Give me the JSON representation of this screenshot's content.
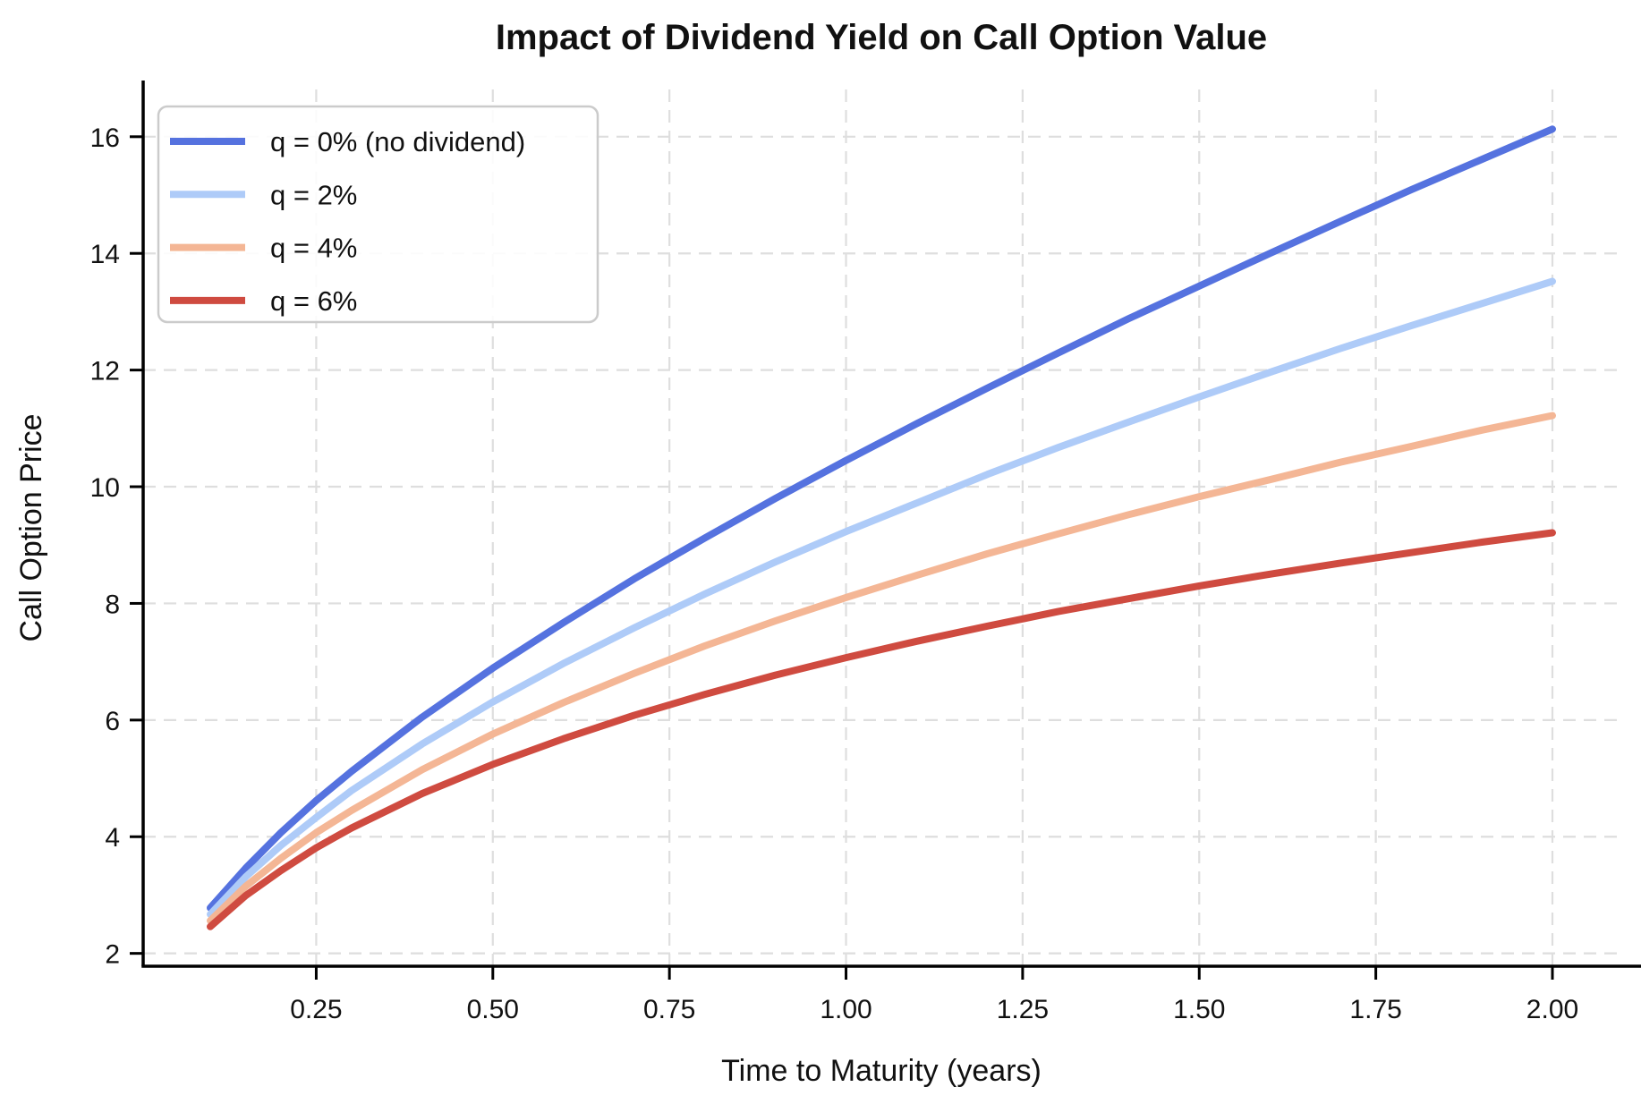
{
  "chart_data": {
    "type": "line",
    "title": "Impact of Dividend Yield on Call Option Value",
    "xlabel": "Time to Maturity (years)",
    "ylabel": "Call Option Price",
    "x": [
      0.1,
      0.15,
      0.2,
      0.25,
      0.3,
      0.4,
      0.5,
      0.6,
      0.7,
      0.8,
      0.9,
      1.0,
      1.1,
      1.2,
      1.3,
      1.4,
      1.5,
      1.6,
      1.7,
      1.8,
      1.9,
      2.0
    ],
    "series": [
      {
        "name": "q = 0% (no dividend)",
        "color": "#5572DF",
        "values": [
          2.78,
          3.46,
          4.07,
          4.62,
          5.12,
          6.05,
          6.89,
          7.67,
          8.42,
          9.12,
          9.8,
          10.45,
          11.08,
          11.69,
          12.29,
          12.88,
          13.44,
          14.0,
          14.55,
          15.09,
          15.61,
          16.13
        ]
      },
      {
        "name": "q = 2%",
        "color": "#AECBF8",
        "values": [
          2.67,
          3.31,
          3.85,
          4.33,
          4.79,
          5.59,
          6.31,
          6.97,
          7.58,
          8.16,
          8.71,
          9.23,
          9.72,
          10.21,
          10.67,
          11.11,
          11.54,
          11.96,
          12.37,
          12.76,
          13.14,
          13.52
        ]
      },
      {
        "name": "q = 4%",
        "color": "#F4B695",
        "values": [
          2.56,
          3.15,
          3.63,
          4.07,
          4.45,
          5.15,
          5.76,
          6.3,
          6.8,
          7.27,
          7.7,
          8.1,
          8.48,
          8.85,
          9.19,
          9.52,
          9.83,
          10.12,
          10.42,
          10.69,
          10.97,
          11.22
        ]
      },
      {
        "name": "q = 6%",
        "color": "#CF4B40",
        "values": [
          2.46,
          2.99,
          3.42,
          3.81,
          4.15,
          4.74,
          5.24,
          5.68,
          6.08,
          6.44,
          6.77,
          7.07,
          7.35,
          7.61,
          7.86,
          8.08,
          8.3,
          8.5,
          8.69,
          8.87,
          9.05,
          9.21
        ]
      }
    ],
    "xticks": [
      0.25,
      0.5,
      0.75,
      1.0,
      1.25,
      1.5,
      1.75,
      2.0
    ],
    "xtick_labels": [
      "0.25",
      "0.50",
      "0.75",
      "1.00",
      "1.25",
      "1.50",
      "1.75",
      "2.00"
    ],
    "yticks": [
      2,
      4,
      6,
      8,
      10,
      12,
      14,
      16
    ],
    "ytick_labels": [
      "2",
      "4",
      "6",
      "8",
      "10",
      "12",
      "14",
      "16"
    ],
    "xlim": [
      0.005,
      2.095
    ],
    "ylim": [
      1.78,
      16.81
    ],
    "grid": true,
    "grid_style": "dashed",
    "grid_color": "#dedede",
    "legend_position": "upper left",
    "background_color": "#ffffff"
  }
}
